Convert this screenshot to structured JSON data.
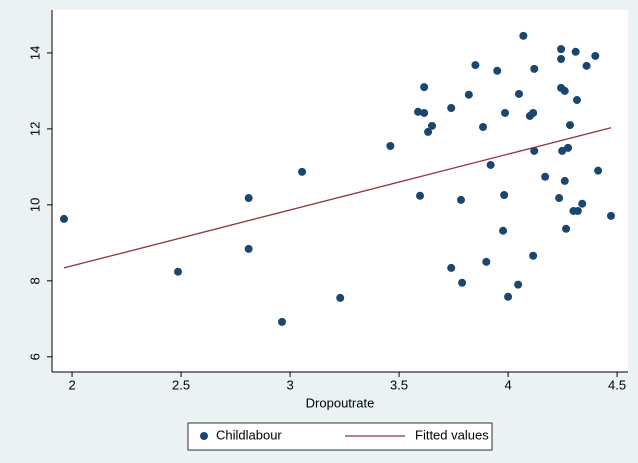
{
  "chart_data": {
    "type": "scatter",
    "x_label": "Dropoutrate",
    "xlim": [
      1.908,
      4.55
    ],
    "ylim": [
      5.6,
      15.13
    ],
    "xticks": [
      2,
      2.5,
      3,
      3.5,
      4,
      4.5
    ],
    "yticks": [
      6,
      8,
      10,
      12,
      14
    ],
    "grid": false,
    "legend": "bottom",
    "series": [
      {
        "name": "Childlabour",
        "color": "#1a476f",
        "x": [
          1.963,
          2.486,
          2.81,
          2.81,
          2.963,
          3.055,
          3.23,
          3.46,
          3.587,
          3.596,
          3.615,
          3.615,
          3.633,
          3.651,
          3.739,
          3.739,
          3.784,
          3.789,
          3.82,
          3.85,
          3.885,
          3.9,
          3.92,
          3.95,
          3.977,
          3.982,
          3.986,
          4.0,
          4.046,
          4.05,
          4.07,
          4.1,
          4.115,
          4.115,
          4.12,
          4.12,
          4.17,
          4.234,
          4.243,
          4.243,
          4.243,
          4.248,
          4.26,
          4.26,
          4.266,
          4.275,
          4.284,
          4.3,
          4.31,
          4.316,
          4.32,
          4.34,
          4.36,
          4.4,
          4.413,
          4.472
        ],
        "values": [
          9.63,
          8.24,
          10.18,
          8.84,
          6.92,
          10.87,
          7.55,
          11.55,
          12.45,
          10.24,
          13.1,
          12.42,
          11.92,
          12.08,
          12.55,
          8.34,
          10.13,
          7.95,
          12.9,
          13.68,
          12.05,
          8.5,
          11.05,
          13.53,
          9.32,
          10.26,
          12.42,
          7.58,
          7.9,
          12.92,
          14.45,
          12.34,
          12.42,
          8.66,
          13.58,
          11.42,
          10.74,
          10.18,
          14.1,
          13.84,
          13.08,
          11.42,
          13.0,
          10.63,
          9.37,
          11.5,
          12.1,
          9.84,
          14.03,
          12.76,
          9.84,
          10.03,
          13.66,
          13.92,
          10.9,
          9.71
        ]
      },
      {
        "name": "Fitted values",
        "type": "line",
        "color": "#90353b",
        "x": [
          1.963,
          4.472
        ],
        "values": [
          8.34,
          12.03
        ]
      }
    ]
  }
}
